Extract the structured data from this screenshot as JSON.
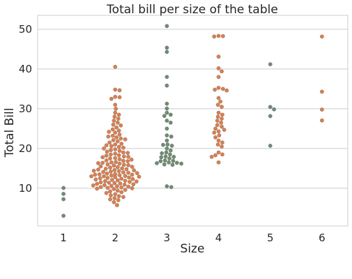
{
  "chart_data": {
    "type": "scatter",
    "subtype": "swarm",
    "title": "Total bill per size of the table",
    "xlabel": "Size",
    "ylabel": "Total Bill",
    "categories": [
      "1",
      "2",
      "3",
      "4",
      "5",
      "6"
    ],
    "ylim": [
      0.5,
      53.5
    ],
    "yticks": [
      10,
      20,
      30,
      40,
      50
    ],
    "grid": "horizontal",
    "colors": {
      "odd": "#6f8c74",
      "even": "#d97f50",
      "edge": "#4a4a4a"
    },
    "series": [
      {
        "category": "1",
        "values": [
          3.07,
          7.25,
          8.58,
          10.07
        ]
      },
      {
        "category": "2",
        "values": [
          40.55,
          34.81,
          34.65,
          33.0,
          32.9,
          32.5,
          31.0,
          30.0,
          29.0,
          28.5,
          28.0,
          27.5,
          27.0,
          26.5,
          26.0,
          25.8,
          25.3,
          24.8,
          24.5,
          24.2,
          24.0,
          23.5,
          23.2,
          23.0,
          22.8,
          22.5,
          22.3,
          22.1,
          21.8,
          21.5,
          21.2,
          21.0,
          20.8,
          20.6,
          20.4,
          20.2,
          20.0,
          19.8,
          19.6,
          19.4,
          19.2,
          19.0,
          18.9,
          18.7,
          18.5,
          18.3,
          18.2,
          18.0,
          17.9,
          17.8,
          17.6,
          17.5,
          17.3,
          17.2,
          17.0,
          16.9,
          16.8,
          16.6,
          16.5,
          16.4,
          16.3,
          16.2,
          16.0,
          15.9,
          15.8,
          15.7,
          15.5,
          15.4,
          15.3,
          15.2,
          15.0,
          14.9,
          14.8,
          14.7,
          14.6,
          14.5,
          14.4,
          14.3,
          14.2,
          14.1,
          14.0,
          13.9,
          13.8,
          13.7,
          13.6,
          13.5,
          13.4,
          13.4,
          13.3,
          13.2,
          13.1,
          13.0,
          13.0,
          12.9,
          12.8,
          12.7,
          12.6,
          12.5,
          12.4,
          12.3,
          12.2,
          12.1,
          12.0,
          11.9,
          11.8,
          11.7,
          11.6,
          11.5,
          11.4,
          11.3,
          11.2,
          11.1,
          11.0,
          10.9,
          10.8,
          10.7,
          10.6,
          10.5,
          10.4,
          10.3,
          10.2,
          10.1,
          10.0,
          9.9,
          9.8,
          9.6,
          9.4,
          9.2,
          9.0,
          8.8,
          8.5,
          8.2,
          8.0,
          7.8,
          7.5,
          7.2,
          7.0,
          6.5,
          5.75
        ]
      },
      {
        "category": "3",
        "values": [
          50.81,
          45.35,
          44.3,
          38.01,
          35.83,
          31.27,
          30.06,
          29.0,
          28.5,
          28.2,
          27.0,
          26.5,
          25.0,
          23.3,
          23.0,
          22.0,
          21.0,
          20.9,
          20.7,
          20.0,
          19.5,
          19.0,
          18.8,
          18.5,
          18.0,
          17.9,
          17.8,
          17.5,
          17.0,
          16.9,
          16.8,
          16.5,
          16.4,
          16.3,
          16.2,
          16.0,
          15.9,
          10.5,
          10.3
        ]
      },
      {
        "category": "4",
        "values": [
          48.33,
          48.27,
          48.17,
          43.11,
          40.17,
          39.4,
          38.0,
          35.26,
          35.0,
          34.8,
          34.6,
          32.7,
          31.8,
          31.0,
          30.5,
          29.0,
          28.5,
          28.0,
          27.5,
          27.0,
          26.5,
          25.9,
          25.5,
          25.0,
          24.7,
          24.3,
          24.0,
          23.3,
          22.8,
          22.0,
          21.5,
          21.0,
          20.5,
          19.0,
          18.5,
          18.3,
          17.9,
          16.5
        ]
      },
      {
        "category": "5",
        "values": [
          41.19,
          30.46,
          29.85,
          28.15,
          20.69
        ]
      },
      {
        "category": "6",
        "values": [
          48.17,
          34.3,
          29.8,
          27.05
        ]
      }
    ]
  }
}
